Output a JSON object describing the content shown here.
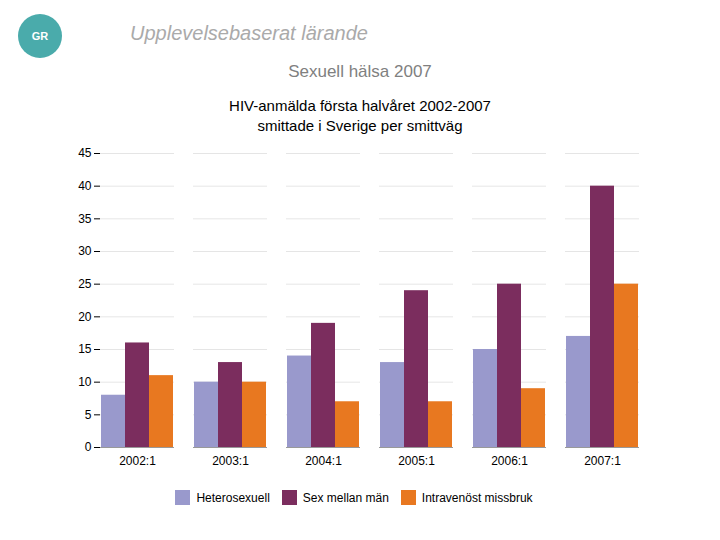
{
  "chart_data": {
    "type": "bar",
    "title": "HIV-anmälda första halvåret 2002-2007",
    "subtitle": "smittade i Sverige per smittväg",
    "annotations": [
      "Upplevelsebaserat lärande",
      "Sexuell hälsa 2007",
      "GR"
    ],
    "categories": [
      "2002:1",
      "2003:1",
      "2004:1",
      "2005:1",
      "2006:1",
      "2007:1"
    ],
    "series": [
      {
        "name": "Heterosexuell",
        "color": "#9999CC",
        "values": [
          8,
          10,
          14,
          13,
          15,
          17
        ]
      },
      {
        "name": "Sex mellan män",
        "color": "#7B2D5E",
        "values": [
          16,
          13,
          19,
          24,
          25,
          40
        ]
      },
      {
        "name": "Intravenöst missbruk",
        "color": "#E87820",
        "values": [
          11,
          10,
          7,
          7,
          9,
          25
        ]
      }
    ],
    "ylim": [
      0,
      45
    ],
    "yticks": [
      0,
      5,
      10,
      15,
      20,
      25,
      30,
      35,
      40,
      45
    ],
    "grid": true
  }
}
